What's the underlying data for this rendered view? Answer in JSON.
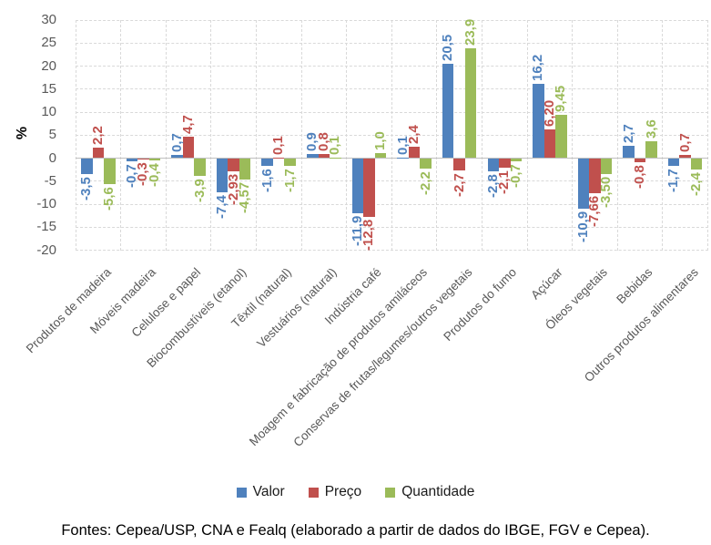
{
  "chart_data": {
    "type": "bar",
    "title": "",
    "ylabel": "%",
    "ylim": [
      -20,
      30
    ],
    "grid": true,
    "legend_position": "bottom",
    "yticks": [
      {
        "label": "30",
        "value": 30
      },
      {
        "label": "25",
        "value": 25
      },
      {
        "label": "20",
        "value": 20
      },
      {
        "label": "15",
        "value": 15
      },
      {
        "label": "10",
        "value": 10
      },
      {
        "label": "5",
        "value": 5
      },
      {
        "label": "0",
        "value": 0
      },
      {
        "label": "-5",
        "value": -5
      },
      {
        "label": "-10",
        "value": -10
      },
      {
        "label": "-15",
        "value": -15
      },
      {
        "label": "-20",
        "value": -20
      }
    ],
    "categories": [
      "Produtos de madeira",
      "Móveis madeira",
      "Celulose e papel",
      "Biocombustíveis (etanol)",
      "Têxtil (natural)",
      "Vestuários (natural)",
      "Indústria café",
      "Moagem e fabricação de produtos amiláceos",
      "Conservas de frutas/legumes/outros vegetais",
      "Produtos do fumo",
      "Açúcar",
      "Óleos vegetais",
      "Bebidas",
      "Outros produtos alimentares"
    ],
    "series": [
      {
        "key": "valor",
        "name": "Valor",
        "color": "#4F81BD",
        "values": [
          -3.5,
          -0.7,
          0.7,
          -7.4,
          -1.6,
          0.9,
          -11.9,
          0.1,
          20.5,
          -2.8,
          16.2,
          -10.9,
          2.7,
          -1.7
        ],
        "labels": [
          "-3,5",
          "-0,7",
          "0,7",
          "-7,4",
          "-1,6",
          "0,9",
          "-11,9",
          "0,1",
          "20,5",
          "-2,8",
          "16,2",
          "-10,9",
          "2,7",
          "-1,7"
        ]
      },
      {
        "key": "preco",
        "name": "Preço",
        "color": "#C0504D",
        "values": [
          2.2,
          -0.3,
          4.7,
          -2.93,
          0.1,
          0.8,
          -12.8,
          2.4,
          -2.7,
          -2.1,
          6.2,
          -7.66,
          -0.8,
          0.7
        ],
        "labels": [
          "2,2",
          "-0,3",
          "4,7",
          "-2,93",
          "0,1",
          "0,8",
          "-12,8",
          "2,4",
          "-2,7",
          "-2,1",
          "6,20",
          "-7,66",
          "-0,8",
          "0,7"
        ]
      },
      {
        "key": "quantidade",
        "name": "Quantidade",
        "color": "#9BBB59",
        "values": [
          -5.6,
          -0.4,
          -3.9,
          -4.57,
          -1.7,
          0.1,
          1.0,
          -2.2,
          23.9,
          -0.7,
          9.45,
          -3.5,
          3.6,
          -2.4
        ],
        "labels": [
          "-5,6",
          "-0,4",
          "-3,9",
          "-4,57",
          "-1,7",
          "0,1",
          "1,0",
          "-2,2",
          "23,9",
          "-0,7",
          "9,45",
          "-3,50",
          "3,6",
          "-2,4"
        ]
      }
    ]
  },
  "colors": {
    "grid": "#D9D9D9",
    "zero_axis": "#BFBFBF",
    "tick_text": "#595959",
    "category_text": "#595959",
    "caption_text": "#000000"
  },
  "footer": {
    "source_text": "Fontes: Cepea/USP, CNA e Fealq (elaborado a partir de dados do IBGE, FGV e Cepea)."
  }
}
